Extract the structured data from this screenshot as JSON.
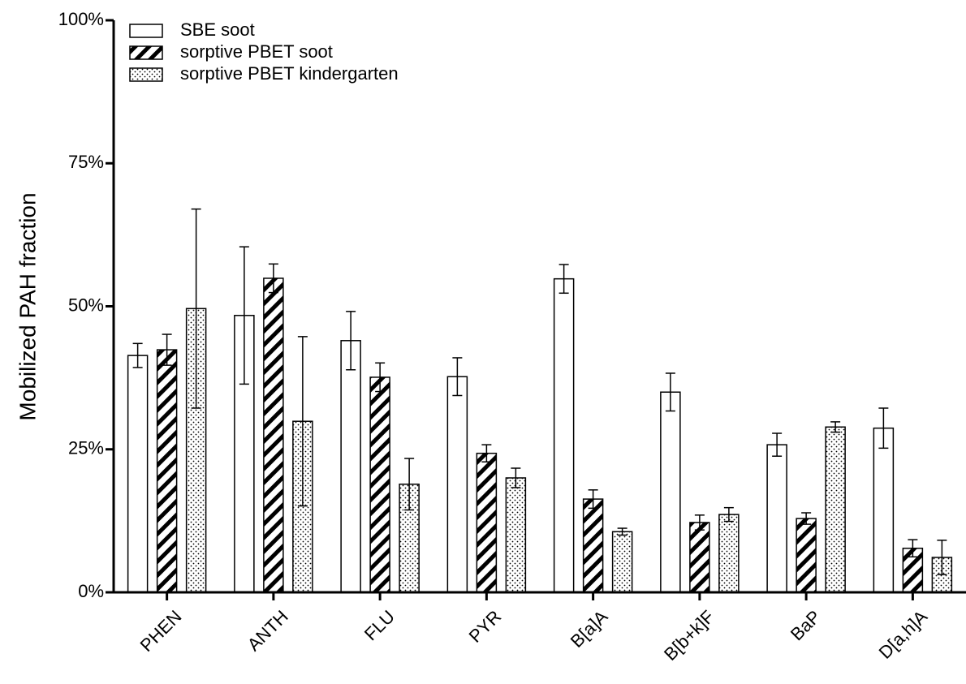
{
  "chart_data": {
    "type": "bar",
    "y_label": "Mobilized PAH fraction",
    "categories": [
      "PHEN",
      "ANTH",
      "FLU",
      "PYR",
      "B[a]A",
      "B[b+k]F",
      "BaP",
      "D[a,h]A"
    ],
    "series": [
      {
        "name": "SBE soot",
        "color": "#ffffff",
        "pattern": "none",
        "values": [
          41.4,
          48.4,
          44.0,
          37.7,
          54.8,
          35.0,
          25.8,
          28.7
        ],
        "errors": [
          2.1,
          12.0,
          5.1,
          3.3,
          2.5,
          3.3,
          2.0,
          3.5
        ]
      },
      {
        "name": "sorptive PBET soot",
        "color": "#ffffff",
        "pattern": "hatch",
        "values": [
          42.4,
          54.9,
          37.6,
          24.3,
          16.3,
          12.2,
          12.9,
          7.7
        ],
        "errors": [
          2.7,
          2.5,
          2.5,
          1.5,
          1.6,
          1.3,
          1.0,
          1.5
        ]
      },
      {
        "name": "sorptive PBET kindergarten",
        "color": "#ffffff",
        "pattern": "dots",
        "values": [
          49.6,
          29.9,
          18.9,
          20.0,
          10.6,
          13.6,
          28.9,
          6.1
        ],
        "errors": [
          17.4,
          14.8,
          4.5,
          1.7,
          0.6,
          1.2,
          0.9,
          3.0
        ]
      }
    ],
    "ylim": [
      0,
      100
    ],
    "yticks": [
      {
        "value": 0,
        "label": "0%"
      },
      {
        "value": 25,
        "label": "25%"
      },
      {
        "value": 50,
        "label": "50%"
      },
      {
        "value": 75,
        "label": "75%"
      },
      {
        "value": 100,
        "label": "100%"
      }
    ],
    "legend": "top-left"
  }
}
